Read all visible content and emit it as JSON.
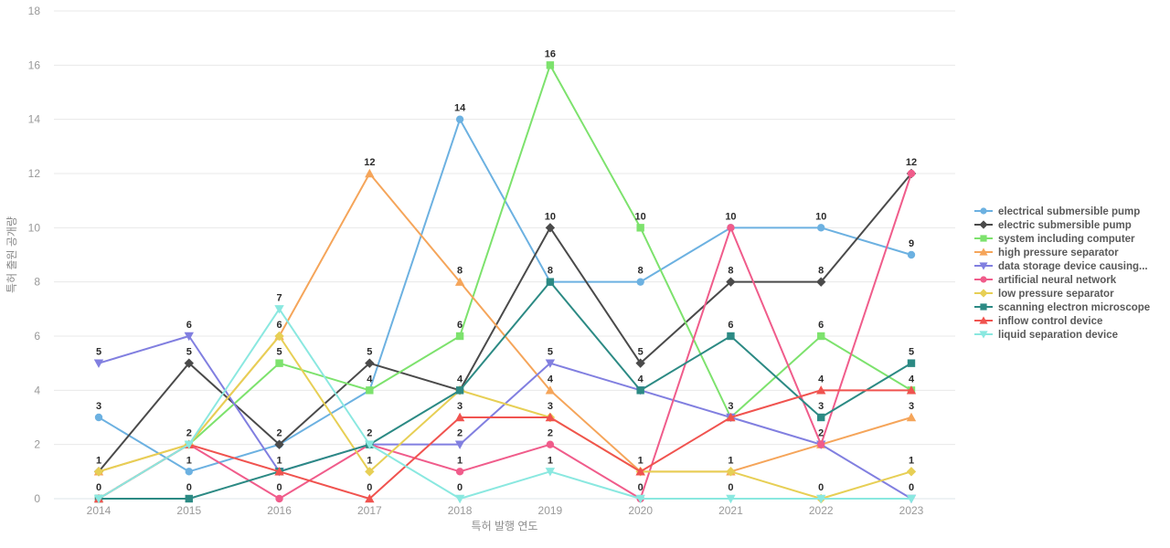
{
  "chart_data": {
    "type": "line",
    "title": "",
    "xlabel": "특허 발행 연도",
    "ylabel": "특허 출원 공개량",
    "x": [
      "2014",
      "2015",
      "2016",
      "2017",
      "2018",
      "2019",
      "2020",
      "2021",
      "2022",
      "2023"
    ],
    "ylim": [
      0,
      18
    ],
    "ytick_step": 2,
    "grid": true,
    "legend_position": "right",
    "show_point_labels": true,
    "series": [
      {
        "name": "electrical submersible pump",
        "color": "#6cb1e1",
        "marker": "circle",
        "values": [
          3,
          1,
          2,
          4,
          14,
          8,
          8,
          10,
          10,
          9
        ]
      },
      {
        "name": "electric submersible pump",
        "color": "#4a4a4a",
        "marker": "diamond",
        "values": [
          1,
          5,
          2,
          5,
          4,
          10,
          5,
          8,
          8,
          12
        ]
      },
      {
        "name": "system including computer",
        "color": "#7de26d",
        "marker": "square",
        "values": [
          0,
          2,
          5,
          4,
          6,
          16,
          10,
          3,
          6,
          4
        ]
      },
      {
        "name": "high pressure separator",
        "color": "#f5a55a",
        "marker": "triangle-up",
        "values": [
          1,
          2,
          6,
          12,
          8,
          4,
          1,
          1,
          2,
          3
        ]
      },
      {
        "name": "data storage device causing...",
        "color": "#817fe0",
        "marker": "triangle-down",
        "values": [
          5,
          6,
          1,
          2,
          2,
          5,
          4,
          3,
          2,
          0
        ]
      },
      {
        "name": "artificial neural network",
        "color": "#f05c8b",
        "marker": "circle",
        "values": [
          0,
          2,
          0,
          2,
          1,
          2,
          0,
          10,
          2,
          12
        ]
      },
      {
        "name": "low pressure separator",
        "color": "#e7cf55",
        "marker": "diamond",
        "values": [
          1,
          2,
          6,
          1,
          4,
          3,
          1,
          1,
          0,
          1
        ]
      },
      {
        "name": "scanning electron microscope",
        "color": "#2c8a84",
        "marker": "square",
        "values": [
          0,
          0,
          1,
          2,
          4,
          8,
          4,
          6,
          3,
          5
        ]
      },
      {
        "name": "inflow control device",
        "color": "#f0534f",
        "marker": "triangle-up",
        "values": [
          0,
          2,
          1,
          0,
          3,
          3,
          1,
          3,
          4,
          4
        ]
      },
      {
        "name": "liquid separation device",
        "color": "#8ae8e0",
        "marker": "triangle-down",
        "values": [
          0,
          2,
          7,
          2,
          0,
          1,
          0,
          0,
          0,
          0
        ]
      }
    ],
    "yticks": [
      "0",
      "2",
      "4",
      "6",
      "8",
      "10",
      "12",
      "14",
      "16",
      "18"
    ]
  }
}
